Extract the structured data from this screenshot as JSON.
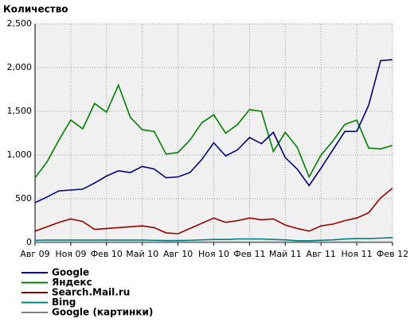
{
  "chart_data": {
    "type": "line",
    "title": "Количество",
    "categories": [
      "Авг 09",
      null,
      null,
      "Ноя 09",
      null,
      null,
      "Фев 10",
      null,
      null,
      "Май 10",
      null,
      null,
      "Авг 10",
      null,
      null,
      "Ноя 10",
      null,
      null,
      "Фев 11",
      null,
      null,
      "Май 11",
      null,
      null,
      "Авг 11",
      null,
      null,
      "Ноя 11",
      null,
      null,
      "Фев 12"
    ],
    "ylim": [
      0,
      2500
    ],
    "yticks": [
      0,
      500,
      {
        "value": 1000,
        "label": "1,000"
      },
      {
        "value": 1500,
        "label": "1,500"
      },
      {
        "value": 2000,
        "label": "2,000"
      },
      {
        "value": 2500,
        "label": "2,500"
      }
    ],
    "grid": true,
    "series": [
      {
        "name": "Google",
        "color": "#000080",
        "values": [
          455,
          520,
          590,
          600,
          610,
          680,
          760,
          820,
          800,
          870,
          840,
          740,
          750,
          800,
          950,
          1140,
          990,
          1060,
          1200,
          1130,
          1260,
          970,
          840,
          650,
          850,
          1060,
          1270,
          1270,
          1570,
          2080,
          2090
        ]
      },
      {
        "name": "Яндекс",
        "color": "#008000",
        "values": [
          740,
          920,
          1170,
          1400,
          1300,
          1590,
          1490,
          1800,
          1430,
          1290,
          1270,
          1010,
          1030,
          1170,
          1370,
          1460,
          1250,
          1350,
          1520,
          1500,
          1040,
          1260,
          1090,
          750,
          1000,
          1160,
          1350,
          1400,
          1080,
          1070,
          1110
        ]
      },
      {
        "name": "Search.Mail.ru",
        "color": "#990000",
        "values": [
          130,
          180,
          230,
          270,
          240,
          150,
          160,
          170,
          180,
          190,
          170,
          110,
          100,
          160,
          220,
          280,
          230,
          250,
          280,
          260,
          270,
          200,
          160,
          130,
          190,
          210,
          250,
          280,
          340,
          510,
          620
        ]
      },
      {
        "name": "Bing",
        "color": "#008080",
        "values": [
          25,
          28,
          28,
          28,
          28,
          28,
          28,
          28,
          28,
          28,
          25,
          22,
          22,
          25,
          30,
          35,
          35,
          40,
          40,
          40,
          35,
          30,
          20,
          20,
          25,
          30,
          40,
          45,
          45,
          50,
          55
        ]
      },
      {
        "name": "Google (картинки)",
        "color": "#808080",
        "values": [
          5,
          5,
          5,
          5,
          5,
          5,
          5,
          5,
          5,
          5,
          5,
          5,
          5,
          5,
          5,
          5,
          5,
          5,
          5,
          5,
          5,
          5,
          5,
          5,
          5,
          5,
          5,
          5,
          5,
          5,
          5
        ]
      }
    ]
  }
}
